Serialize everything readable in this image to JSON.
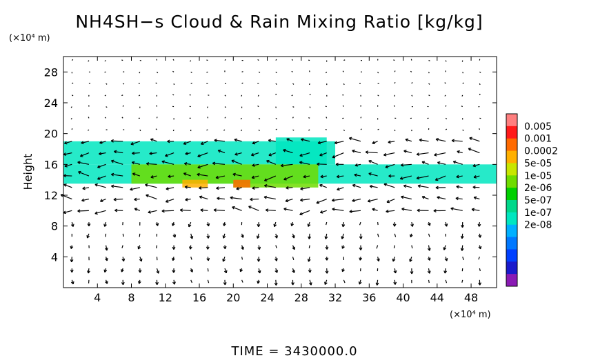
{
  "chart_data": {
    "type": "heatmap",
    "title": "NH4SH−s Cloud & Rain Mixing Ratio [kg/kg]",
    "ylabel": "Height",
    "y_unit": "(×10⁴ m)",
    "x_unit": "(×10⁴ m)",
    "footer": "TIME  =  3430000.0",
    "xlim": [
      0,
      51
    ],
    "ylim": [
      0,
      30
    ],
    "x_ticks": [
      4,
      8,
      12,
      16,
      20,
      24,
      28,
      32,
      36,
      40,
      44,
      48
    ],
    "y_ticks": [
      4,
      8,
      12,
      16,
      20,
      24,
      28
    ],
    "colorbar": {
      "labels": [
        "0.005",
        "0.001",
        "0.0002",
        "5e-05",
        "1e-05",
        "2e-06",
        "5e-07",
        "1e-07",
        "2e-08"
      ],
      "colors": [
        "#ff7f7f",
        "#ff1a1a",
        "#ff6a00",
        "#ffb000",
        "#c8e600",
        "#6fdc00",
        "#00d000",
        "#00d88a",
        "#00e6c0",
        "#00b0ff",
        "#0078ff",
        "#0040ff",
        "#1a1acc",
        "#8a1ab4"
      ]
    },
    "regions": [
      {
        "x": [
          0,
          51
        ],
        "y": [
          13.5,
          16
        ],
        "level": "1e-07"
      },
      {
        "x": [
          0,
          32
        ],
        "y": [
          16,
          19
        ],
        "level": "1e-07"
      },
      {
        "x": [
          25,
          31
        ],
        "y": [
          16,
          19.5
        ],
        "level": "1e-07"
      },
      {
        "x": [
          8,
          20
        ],
        "y": [
          13.5,
          16
        ],
        "level": "1e-05"
      },
      {
        "x": [
          20,
          30
        ],
        "y": [
          13,
          16
        ],
        "level": "1e-05"
      },
      {
        "x": [
          14,
          17
        ],
        "y": [
          13,
          14
        ],
        "level": "0.0002"
      },
      {
        "x": [
          20,
          22
        ],
        "y": [
          13,
          14
        ],
        "level": "0.001"
      }
    ],
    "series_note": "wind vectors"
  }
}
